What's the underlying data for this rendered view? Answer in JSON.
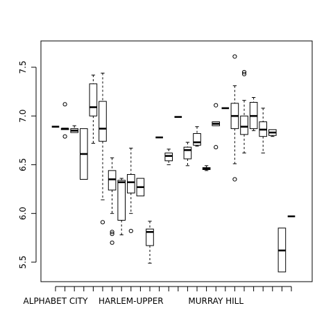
{
  "chart_data": {
    "type": "boxplot",
    "title": "",
    "xlabel": "",
    "ylabel": "",
    "ylim": [
      5.3,
      7.77
    ],
    "y_ticks": [
      5.5,
      6.0,
      6.5,
      7.0,
      7.5
    ],
    "y_tick_labels": [
      "5.5",
      "6.0",
      "6.5",
      "7.0",
      "7.5"
    ],
    "x_tick_labels": [
      {
        "position": 1,
        "label": "ALPHABET CITY"
      },
      {
        "position": 9,
        "label": "HARLEM-UPPER"
      },
      {
        "position": 18,
        "label": "MURRAY HILL"
      }
    ],
    "boxes": [
      {
        "position": 1,
        "min": 6.89,
        "q1": 6.89,
        "median": 6.89,
        "q3": 6.89,
        "max": 6.89,
        "outliers": []
      },
      {
        "position": 2,
        "min": 6.86,
        "q1": 6.86,
        "median": 6.87,
        "q3": 6.87,
        "max": 6.87,
        "outliers": [
          7.12,
          6.79
        ]
      },
      {
        "position": 3,
        "min": 6.83,
        "q1": 6.83,
        "median": 6.85,
        "q3": 6.87,
        "max": 6.9,
        "outliers": []
      },
      {
        "position": 4,
        "min": 6.35,
        "q1": 6.35,
        "median": 6.61,
        "q3": 6.87,
        "max": 6.87,
        "outliers": []
      },
      {
        "position": 5,
        "min": 6.72,
        "q1": 7.0,
        "median": 7.09,
        "q3": 7.33,
        "max": 7.42,
        "outliers": []
      },
      {
        "position": 6,
        "min": 6.14,
        "q1": 6.74,
        "median": 6.87,
        "q3": 7.15,
        "max": 7.44,
        "outliers": [
          5.91
        ]
      },
      {
        "position": 7,
        "min": 6.0,
        "q1": 6.24,
        "median": 6.35,
        "q3": 6.44,
        "max": 6.57,
        "outliers": [
          5.81,
          5.79,
          5.7
        ]
      },
      {
        "position": 8,
        "min": 5.78,
        "q1": 5.93,
        "median": 6.32,
        "q3": 6.34,
        "max": 6.36,
        "outliers": []
      },
      {
        "position": 9,
        "min": 6.0,
        "q1": 6.21,
        "median": 6.32,
        "q3": 6.4,
        "max": 6.67,
        "outliers": [
          5.82
        ]
      },
      {
        "position": 10,
        "min": 6.18,
        "q1": 6.18,
        "median": 6.27,
        "q3": 6.36,
        "max": 6.36,
        "outliers": []
      },
      {
        "position": 11,
        "min": 5.49,
        "q1": 5.67,
        "median": 5.81,
        "q3": 5.84,
        "max": 5.92,
        "outliers": []
      },
      {
        "position": 12,
        "min": 6.78,
        "q1": 6.78,
        "median": 6.78,
        "q3": 6.78,
        "max": 6.78,
        "outliers": []
      },
      {
        "position": 13,
        "min": 6.5,
        "q1": 6.54,
        "median": 6.59,
        "q3": 6.62,
        "max": 6.66,
        "outliers": []
      },
      {
        "position": 14,
        "min": 6.99,
        "q1": 6.99,
        "median": 6.99,
        "q3": 6.99,
        "max": 6.99,
        "outliers": []
      },
      {
        "position": 15,
        "min": 6.49,
        "q1": 6.56,
        "median": 6.65,
        "q3": 6.68,
        "max": 6.73,
        "outliers": []
      },
      {
        "position": 16,
        "min": 6.69,
        "q1": 6.7,
        "median": 6.73,
        "q3": 6.82,
        "max": 6.89,
        "outliers": []
      },
      {
        "position": 17,
        "min": 6.44,
        "q1": 6.45,
        "median": 6.46,
        "q3": 6.47,
        "max": 6.49,
        "outliers": []
      },
      {
        "position": 18,
        "min": 6.9,
        "q1": 6.9,
        "median": 6.92,
        "q3": 6.94,
        "max": 6.94,
        "outliers": [
          7.11,
          6.68
        ]
      },
      {
        "position": 19,
        "min": 7.08,
        "q1": 7.08,
        "median": 7.08,
        "q3": 7.08,
        "max": 7.08,
        "outliers": []
      },
      {
        "position": 20,
        "min": 6.51,
        "q1": 6.87,
        "median": 7.0,
        "q3": 7.13,
        "max": 7.31,
        "outliers": [
          7.61,
          6.35
        ]
      },
      {
        "position": 21,
        "min": 6.62,
        "q1": 6.81,
        "median": 6.89,
        "q3": 7.0,
        "max": 7.16,
        "outliers": [
          7.45,
          7.43
        ]
      },
      {
        "position": 22,
        "min": 6.85,
        "q1": 6.87,
        "median": 7.0,
        "q3": 7.14,
        "max": 7.19,
        "outliers": []
      },
      {
        "position": 23,
        "min": 6.62,
        "q1": 6.79,
        "median": 6.86,
        "q3": 6.94,
        "max": 7.08,
        "outliers": []
      },
      {
        "position": 24,
        "min": 6.79,
        "q1": 6.8,
        "median": 6.83,
        "q3": 6.86,
        "max": 6.86,
        "outliers": []
      },
      {
        "position": 25,
        "min": 5.4,
        "q1": 5.4,
        "median": 5.62,
        "q3": 5.85,
        "max": 5.85,
        "outliers": []
      },
      {
        "position": 26,
        "min": 5.97,
        "q1": 5.97,
        "median": 5.97,
        "q3": 5.97,
        "max": 5.97,
        "outliers": []
      }
    ],
    "n_positions": 26,
    "grid": false,
    "legend": "none"
  }
}
